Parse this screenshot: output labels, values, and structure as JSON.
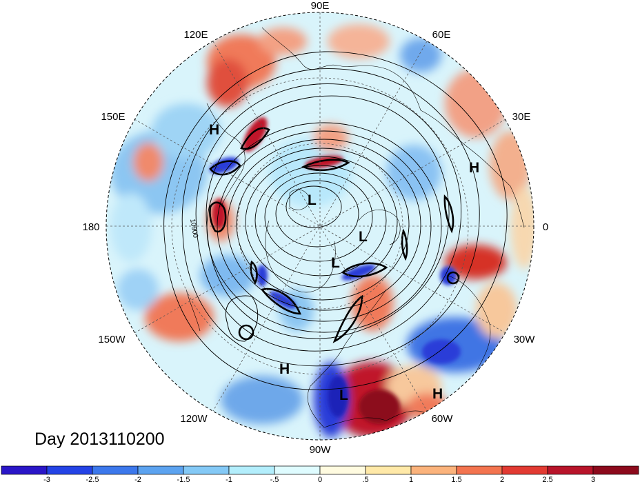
{
  "title": "Day 2013110200",
  "longitude_labels": [
    "90E",
    "60E",
    "30E",
    "0",
    "30W",
    "60W",
    "90W",
    "120W",
    "150W",
    "180",
    "150E",
    "120E"
  ],
  "contour_label": "10900",
  "pressure_centers": [
    {
      "type": "H",
      "region": "east-siberia"
    },
    {
      "type": "H",
      "region": "europe"
    },
    {
      "type": "L",
      "region": "arctic-north"
    },
    {
      "type": "L",
      "region": "arctic-east"
    },
    {
      "type": "L",
      "region": "arctic-south"
    },
    {
      "type": "H",
      "region": "north-america-west"
    },
    {
      "type": "L",
      "region": "central-america"
    },
    {
      "type": "H",
      "region": "south-atlantic"
    }
  ],
  "colorbar": {
    "ticks": [
      "-3",
      "-2.5",
      "-2",
      "-1.5",
      "-1",
      "-.5",
      "0",
      ".5",
      "1",
      "1.5",
      "2",
      "2.5",
      "3"
    ],
    "colors": [
      "#2a16c8",
      "#2443e6",
      "#3c78ec",
      "#5ca3f0",
      "#84c9f6",
      "#b3eefc",
      "#dffcff",
      "#fffbe0",
      "#ffe9a8",
      "#fbb37c",
      "#f3744f",
      "#e23a32",
      "#b8142a",
      "#8c0a1c"
    ]
  },
  "colors": {
    "background": "#ffffff",
    "contour": "#000000",
    "grid": "#555555"
  }
}
